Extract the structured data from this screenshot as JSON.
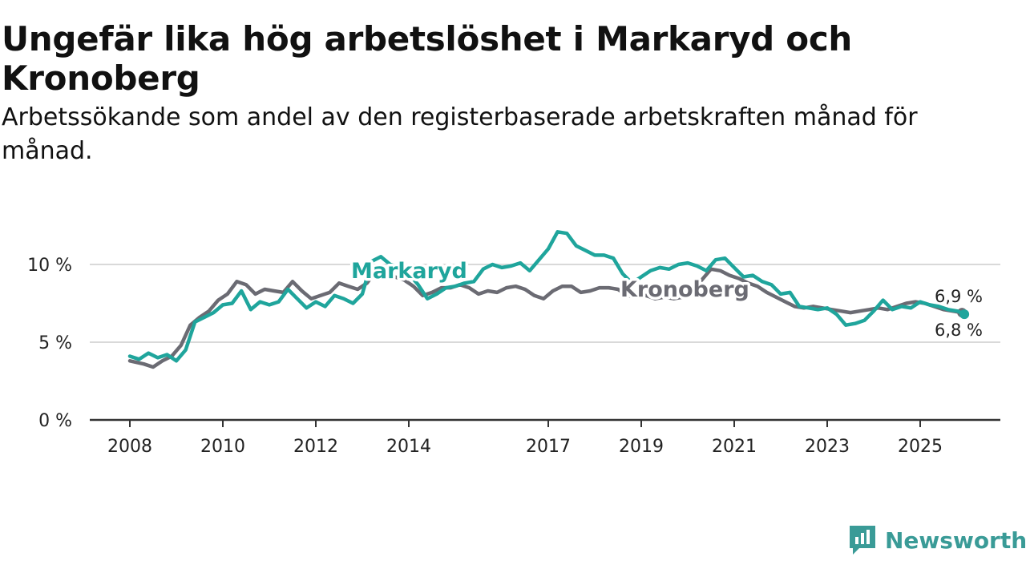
{
  "title": "Ungefär lika hög arbetslöshet i Markaryd och Kronoberg",
  "subtitle": "Arbetssökande som andel av den registerbaserade arbetskraften månad för månad.",
  "brand": {
    "name": "Newsworthy",
    "icon": "newsworthy-logo-icon"
  },
  "chart_data": {
    "type": "line",
    "title": "Ungefär lika hög arbetslöshet i Markaryd och Kronoberg",
    "xlabel": "",
    "ylabel": "",
    "xlim": [
      2008,
      2026.2
    ],
    "ylim": [
      0,
      12
    ],
    "x_ticks": [
      {
        "value": 2008,
        "label": "2008"
      },
      {
        "value": 2010,
        "label": "2010"
      },
      {
        "value": 2012,
        "label": "2012"
      },
      {
        "value": 2014,
        "label": "2014"
      },
      {
        "value": 2017,
        "label": "2017"
      },
      {
        "value": 2019,
        "label": "2019"
      },
      {
        "value": 2021,
        "label": "2021"
      },
      {
        "value": 2023,
        "label": "2023"
      },
      {
        "value": 2025,
        "label": "2025"
      }
    ],
    "y_ticks": [
      {
        "value": 0,
        "label": "0 %"
      },
      {
        "value": 5,
        "label": "5 %"
      },
      {
        "value": 10,
        "label": "10 %"
      }
    ],
    "grid": true,
    "series": [
      {
        "name": "Kronoberg",
        "color": "#6b6b73",
        "end_label": "6,9 %",
        "points": [
          [
            2008.0,
            3.8
          ],
          [
            2008.3,
            3.6
          ],
          [
            2008.5,
            3.4
          ],
          [
            2008.7,
            3.8
          ],
          [
            2008.9,
            4.1
          ],
          [
            2009.1,
            4.8
          ],
          [
            2009.3,
            6.1
          ],
          [
            2009.5,
            6.6
          ],
          [
            2009.7,
            7.0
          ],
          [
            2009.9,
            7.7
          ],
          [
            2010.1,
            8.1
          ],
          [
            2010.3,
            8.9
          ],
          [
            2010.5,
            8.7
          ],
          [
            2010.7,
            8.1
          ],
          [
            2010.9,
            8.4
          ],
          [
            2011.1,
            8.3
          ],
          [
            2011.3,
            8.2
          ],
          [
            2011.5,
            8.9
          ],
          [
            2011.7,
            8.3
          ],
          [
            2011.9,
            7.8
          ],
          [
            2012.1,
            8.0
          ],
          [
            2012.3,
            8.2
          ],
          [
            2012.5,
            8.8
          ],
          [
            2012.7,
            8.6
          ],
          [
            2012.9,
            8.4
          ],
          [
            2013.1,
            8.8
          ],
          [
            2013.3,
            9.6
          ],
          [
            2013.5,
            9.5
          ],
          [
            2013.7,
            9.2
          ],
          [
            2013.9,
            9.0
          ],
          [
            2014.1,
            8.6
          ],
          [
            2014.3,
            8.0
          ],
          [
            2014.5,
            8.2
          ],
          [
            2014.7,
            8.5
          ],
          [
            2014.9,
            8.5
          ],
          [
            2015.1,
            8.7
          ],
          [
            2015.3,
            8.5
          ],
          [
            2015.5,
            8.1
          ],
          [
            2015.7,
            8.3
          ],
          [
            2015.9,
            8.2
          ],
          [
            2016.1,
            8.5
          ],
          [
            2016.3,
            8.6
          ],
          [
            2016.5,
            8.4
          ],
          [
            2016.7,
            8.0
          ],
          [
            2016.9,
            7.8
          ],
          [
            2017.1,
            8.3
          ],
          [
            2017.3,
            8.6
          ],
          [
            2017.5,
            8.6
          ],
          [
            2017.7,
            8.2
          ],
          [
            2017.9,
            8.3
          ],
          [
            2018.1,
            8.5
          ],
          [
            2018.3,
            8.5
          ],
          [
            2018.5,
            8.4
          ],
          [
            2018.7,
            8.0
          ],
          [
            2018.9,
            7.9
          ],
          [
            2019.1,
            8.0
          ],
          [
            2019.3,
            7.8
          ],
          [
            2019.5,
            7.9
          ],
          [
            2019.7,
            7.8
          ],
          [
            2019.9,
            7.9
          ],
          [
            2020.1,
            8.3
          ],
          [
            2020.3,
            9.0
          ],
          [
            2020.5,
            9.7
          ],
          [
            2020.7,
            9.6
          ],
          [
            2020.9,
            9.3
          ],
          [
            2021.1,
            9.1
          ],
          [
            2021.3,
            8.8
          ],
          [
            2021.5,
            8.6
          ],
          [
            2021.7,
            8.2
          ],
          [
            2021.9,
            7.9
          ],
          [
            2022.1,
            7.6
          ],
          [
            2022.3,
            7.3
          ],
          [
            2022.5,
            7.2
          ],
          [
            2022.7,
            7.3
          ],
          [
            2022.9,
            7.2
          ],
          [
            2023.1,
            7.1
          ],
          [
            2023.3,
            7.0
          ],
          [
            2023.5,
            6.9
          ],
          [
            2023.7,
            7.0
          ],
          [
            2023.9,
            7.1
          ],
          [
            2024.1,
            7.2
          ],
          [
            2024.3,
            7.1
          ],
          [
            2024.5,
            7.3
          ],
          [
            2024.7,
            7.5
          ],
          [
            2024.9,
            7.6
          ],
          [
            2025.1,
            7.5
          ],
          [
            2025.3,
            7.3
          ],
          [
            2025.5,
            7.1
          ],
          [
            2025.7,
            7.0
          ],
          [
            2025.9,
            6.9
          ]
        ]
      },
      {
        "name": "Markaryd",
        "color": "#1fa59c",
        "end_label": "6,8 %",
        "points": [
          [
            2008.0,
            4.1
          ],
          [
            2008.2,
            3.9
          ],
          [
            2008.4,
            4.3
          ],
          [
            2008.6,
            4.0
          ],
          [
            2008.8,
            4.2
          ],
          [
            2009.0,
            3.8
          ],
          [
            2009.2,
            4.5
          ],
          [
            2009.4,
            6.3
          ],
          [
            2009.6,
            6.6
          ],
          [
            2009.8,
            6.9
          ],
          [
            2010.0,
            7.4
          ],
          [
            2010.2,
            7.5
          ],
          [
            2010.4,
            8.3
          ],
          [
            2010.6,
            7.1
          ],
          [
            2010.8,
            7.6
          ],
          [
            2011.0,
            7.4
          ],
          [
            2011.2,
            7.6
          ],
          [
            2011.4,
            8.4
          ],
          [
            2011.6,
            7.8
          ],
          [
            2011.8,
            7.2
          ],
          [
            2012.0,
            7.6
          ],
          [
            2012.2,
            7.3
          ],
          [
            2012.4,
            8.0
          ],
          [
            2012.6,
            7.8
          ],
          [
            2012.8,
            7.5
          ],
          [
            2013.0,
            8.1
          ],
          [
            2013.2,
            10.2
          ],
          [
            2013.4,
            10.5
          ],
          [
            2013.6,
            10.0
          ],
          [
            2013.8,
            9.8
          ],
          [
            2014.0,
            9.4
          ],
          [
            2014.2,
            8.7
          ],
          [
            2014.4,
            7.8
          ],
          [
            2014.6,
            8.1
          ],
          [
            2014.8,
            8.5
          ],
          [
            2015.0,
            8.6
          ],
          [
            2015.2,
            8.8
          ],
          [
            2015.4,
            8.9
          ],
          [
            2015.6,
            9.7
          ],
          [
            2015.8,
            10.0
          ],
          [
            2016.0,
            9.8
          ],
          [
            2016.2,
            9.9
          ],
          [
            2016.4,
            10.1
          ],
          [
            2016.6,
            9.6
          ],
          [
            2016.8,
            10.3
          ],
          [
            2017.0,
            11.0
          ],
          [
            2017.2,
            12.1
          ],
          [
            2017.4,
            12.0
          ],
          [
            2017.6,
            11.2
          ],
          [
            2017.8,
            10.9
          ],
          [
            2018.0,
            10.6
          ],
          [
            2018.2,
            10.6
          ],
          [
            2018.4,
            10.4
          ],
          [
            2018.6,
            9.4
          ],
          [
            2018.8,
            8.8
          ],
          [
            2019.0,
            9.2
          ],
          [
            2019.2,
            9.6
          ],
          [
            2019.4,
            9.8
          ],
          [
            2019.6,
            9.7
          ],
          [
            2019.8,
            10.0
          ],
          [
            2020.0,
            10.1
          ],
          [
            2020.2,
            9.9
          ],
          [
            2020.4,
            9.6
          ],
          [
            2020.6,
            10.3
          ],
          [
            2020.8,
            10.4
          ],
          [
            2021.0,
            9.8
          ],
          [
            2021.2,
            9.2
          ],
          [
            2021.4,
            9.3
          ],
          [
            2021.6,
            8.9
          ],
          [
            2021.8,
            8.7
          ],
          [
            2022.0,
            8.1
          ],
          [
            2022.2,
            8.2
          ],
          [
            2022.4,
            7.3
          ],
          [
            2022.6,
            7.2
          ],
          [
            2022.8,
            7.1
          ],
          [
            2023.0,
            7.2
          ],
          [
            2023.2,
            6.8
          ],
          [
            2023.4,
            6.1
          ],
          [
            2023.6,
            6.2
          ],
          [
            2023.8,
            6.4
          ],
          [
            2024.0,
            7.0
          ],
          [
            2024.2,
            7.7
          ],
          [
            2024.4,
            7.1
          ],
          [
            2024.6,
            7.3
          ],
          [
            2024.8,
            7.2
          ],
          [
            2025.0,
            7.6
          ],
          [
            2025.2,
            7.4
          ],
          [
            2025.4,
            7.3
          ],
          [
            2025.6,
            7.1
          ],
          [
            2025.8,
            7.0
          ],
          [
            2025.95,
            6.8
          ]
        ]
      }
    ]
  }
}
